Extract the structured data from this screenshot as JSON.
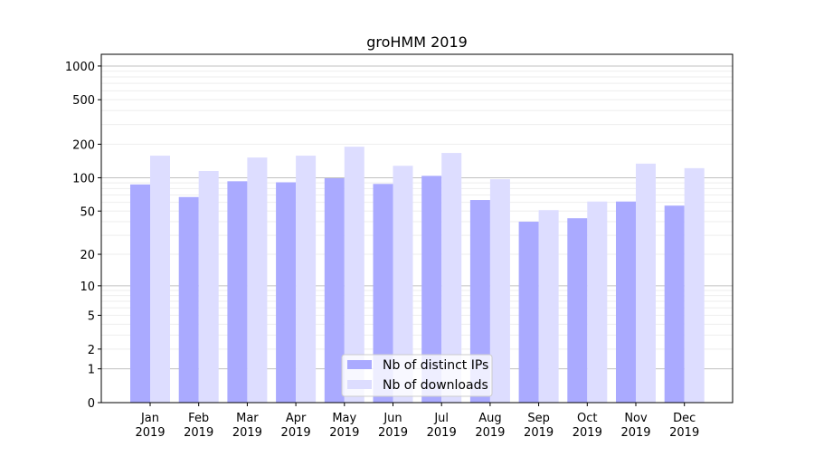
{
  "chart_data": {
    "type": "bar",
    "title": "groHMM 2019",
    "xlabel": "",
    "ylabel": "",
    "yscale": "log10(1+y)",
    "ylim": [
      0,
      1200
    ],
    "yticks": [
      0,
      1,
      2,
      5,
      10,
      20,
      50,
      100,
      200,
      500,
      1000
    ],
    "categories": [
      "Jan\n2019",
      "Feb\n2019",
      "Mar\n2019",
      "Apr\n2019",
      "May\n2019",
      "Jun\n2019",
      "Jul\n2019",
      "Aug\n2019",
      "Sep\n2019",
      "Oct\n2019",
      "Nov\n2019",
      "Dec\n2019"
    ],
    "series": [
      {
        "name": "Nb of distinct IPs",
        "color": "#aaaaff",
        "values": [
          87,
          67,
          93,
          91,
          99,
          88,
          104,
          63,
          40,
          43,
          61,
          56
        ]
      },
      {
        "name": "Nb of downloads",
        "color": "#ddddff",
        "values": [
          158,
          115,
          152,
          158,
          190,
          128,
          167,
          97,
          51,
          61,
          134,
          122
        ]
      }
    ],
    "grid": true,
    "legend": "lower-center"
  }
}
